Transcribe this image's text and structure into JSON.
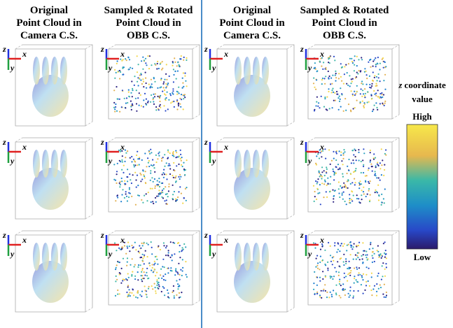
{
  "columns": [
    {
      "title": [
        "Original",
        "Point Cloud in",
        "Camera C.S."
      ]
    },
    {
      "title": [
        "Sampled & Rotated",
        "Point Cloud in",
        "OBB C.S."
      ]
    },
    {
      "title": [
        "Original",
        "Point Cloud in",
        "Camera C.S."
      ]
    },
    {
      "title": [
        "Sampled & Rotated",
        "Point Cloud in",
        "OBB C.S."
      ]
    }
  ],
  "axis_labels": {
    "z": "z",
    "x": "x",
    "y": "y"
  },
  "colorbar": {
    "label": [
      "coordinate",
      "value"
    ],
    "axis": "z",
    "high": "High",
    "low": "Low"
  }
}
